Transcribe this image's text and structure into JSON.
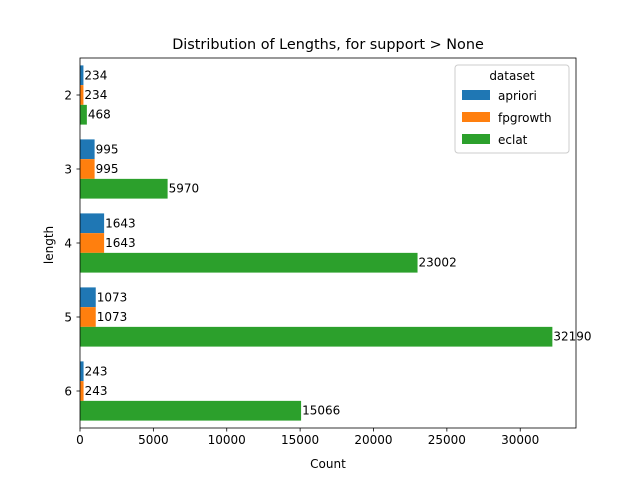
{
  "chart_data": {
    "type": "bar",
    "orientation": "horizontal",
    "title": "Distribution of Lengths, for support > None",
    "xlabel": "Count",
    "ylabel": "length",
    "categories": [
      "2",
      "3",
      "4",
      "5",
      "6"
    ],
    "xlim": [
      0,
      33800
    ],
    "xticks": [
      0,
      5000,
      10000,
      15000,
      20000,
      25000,
      30000
    ],
    "legend": {
      "title": "dataset",
      "position": "top-right"
    },
    "grid": false,
    "series": [
      {
        "name": "apriori",
        "color": "#1f77b4",
        "values": [
          234,
          995,
          1643,
          1073,
          243
        ]
      },
      {
        "name": "fpgrowth",
        "color": "#ff7f0e",
        "values": [
          234,
          995,
          1643,
          1073,
          243
        ]
      },
      {
        "name": "eclat",
        "color": "#2ca02c",
        "values": [
          468,
          5970,
          23002,
          32190,
          15066
        ]
      }
    ]
  }
}
